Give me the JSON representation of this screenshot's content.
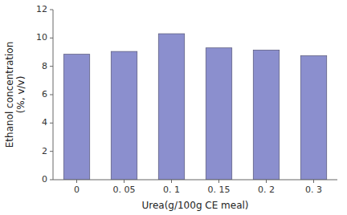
{
  "chart_data": {
    "type": "bar",
    "categories": [
      "0",
      "0. 05",
      "0. 1",
      "0. 15",
      "0. 2",
      "0. 3"
    ],
    "values": [
      8.85,
      9.05,
      10.3,
      9.3,
      9.15,
      8.75
    ],
    "color": "#8b8fce",
    "xlabel": "Urea(g/100g CE meal)",
    "ylabel": "Ethanol concentration\n(%, v/v)",
    "ylim": [
      0,
      12
    ],
    "yticks": [
      0,
      2,
      4,
      6,
      8,
      10,
      12
    ],
    "grid": false
  }
}
